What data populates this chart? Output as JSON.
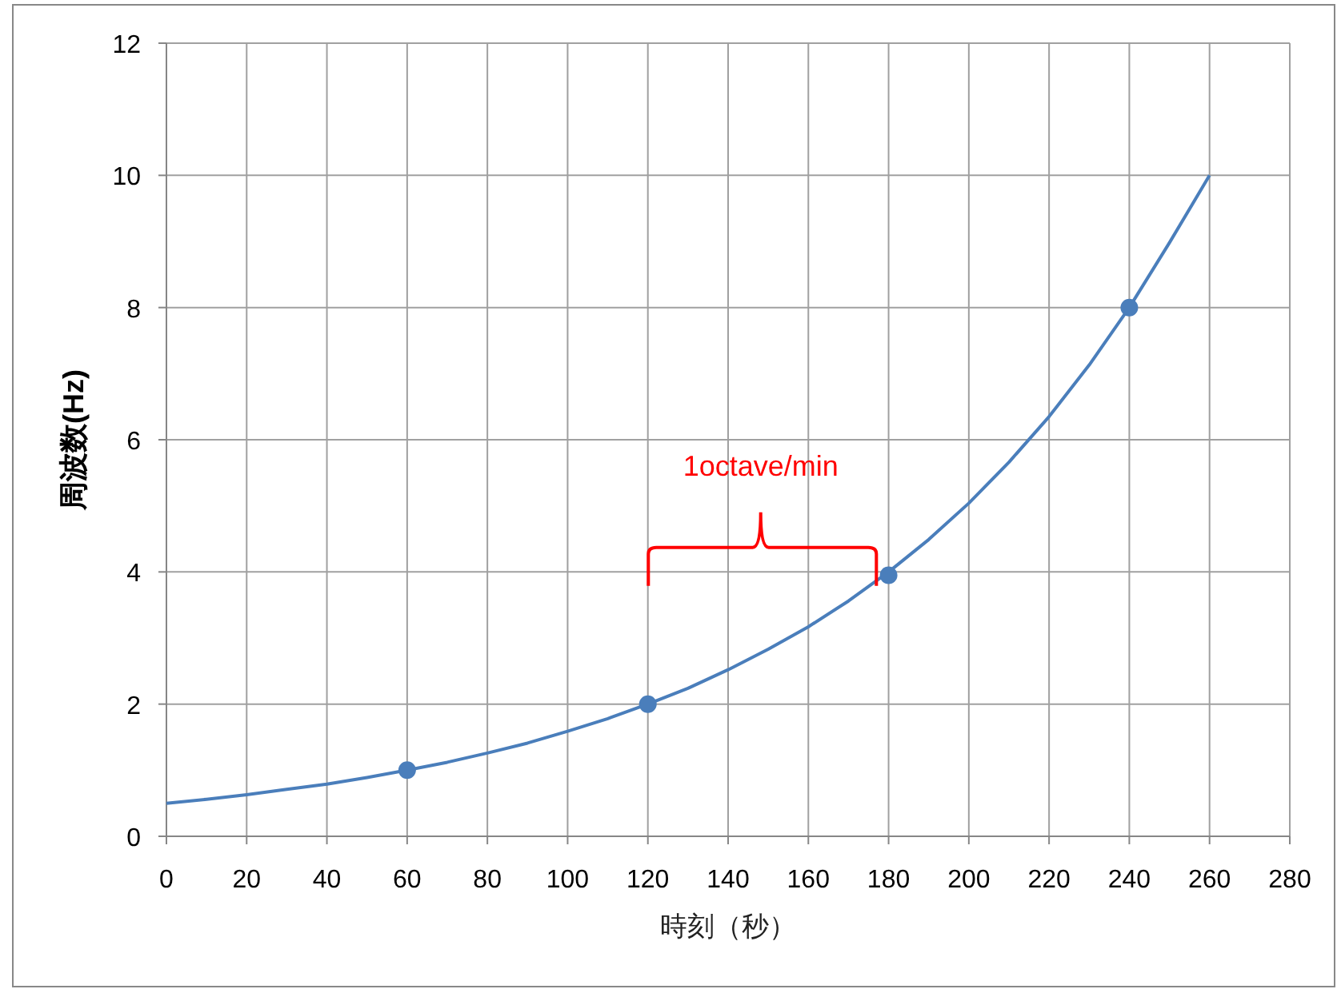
{
  "chart_data": {
    "type": "line",
    "xlabel": "時刻（秒）",
    "ylabel": "周波数(Hz)",
    "xlim": [
      0,
      280
    ],
    "ylim": [
      0,
      12
    ],
    "xticks": [
      0,
      20,
      40,
      60,
      80,
      100,
      120,
      140,
      160,
      180,
      200,
      220,
      240,
      260,
      280
    ],
    "yticks": [
      0,
      2,
      4,
      6,
      8,
      10,
      12
    ],
    "grid": true,
    "series": [
      {
        "color": "#4a7ebb",
        "marker": "none",
        "x": [
          0,
          10,
          20,
          30,
          40,
          50,
          60,
          70,
          80,
          90,
          100,
          110,
          120,
          130,
          140,
          150,
          160,
          170,
          180,
          190,
          200,
          210,
          220,
          230,
          240,
          250,
          260
        ],
        "values": [
          0.5,
          0.56,
          0.63,
          0.71,
          0.79,
          0.89,
          1.0,
          1.12,
          1.26,
          1.41,
          1.59,
          1.78,
          2.0,
          2.24,
          2.52,
          2.83,
          3.17,
          3.56,
          4.0,
          4.49,
          5.04,
          5.66,
          6.35,
          7.13,
          8.0,
          8.98,
          10.0
        ]
      },
      {
        "type": "scatter",
        "color": "#4a7ebb",
        "marker": "circle",
        "x": [
          60,
          120,
          180,
          240
        ],
        "values": [
          1,
          2,
          3.95,
          8
        ]
      }
    ],
    "annotations": [
      "1octave/min"
    ]
  }
}
